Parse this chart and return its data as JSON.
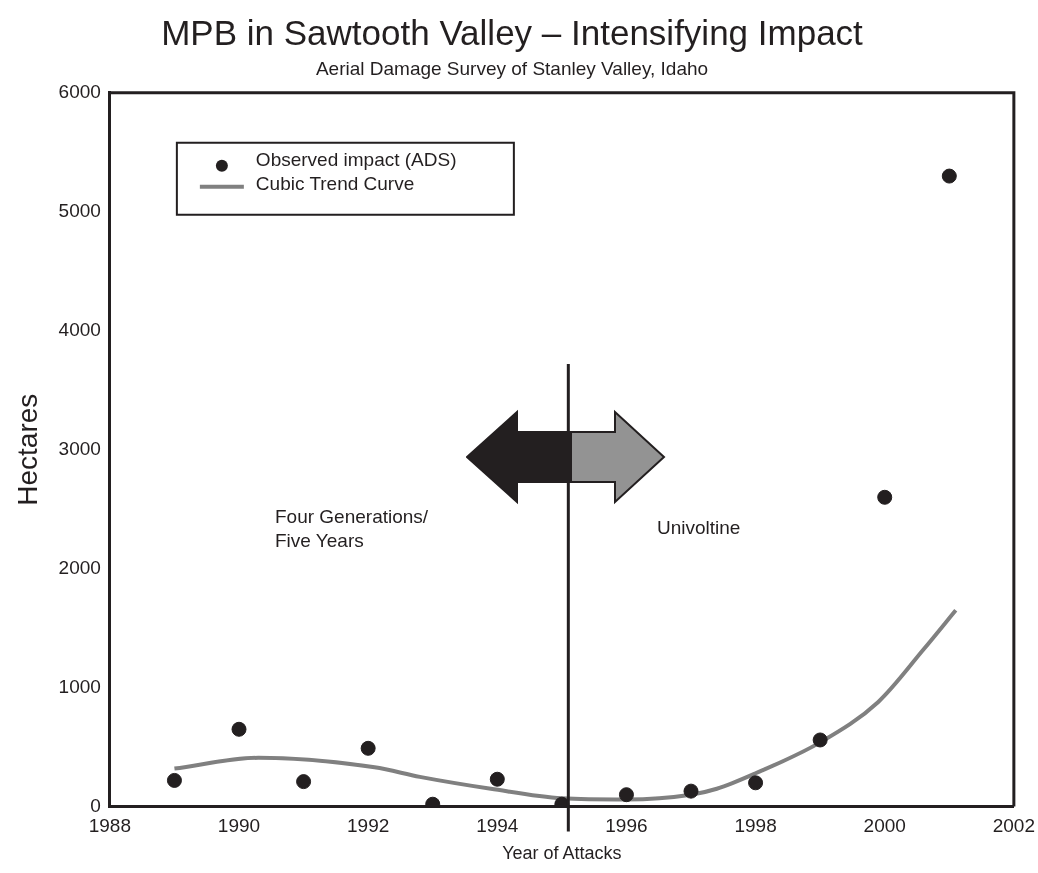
{
  "chart_data": {
    "type": "scatter",
    "title": "MPB in Sawtooth Valley – Intensifying Impact",
    "subtitle": "Aerial Damage Survey of Stanley Valley, Idaho",
    "xlabel": "Year of Attacks",
    "ylabel": "Hectares",
    "series": [
      {
        "name": "Observed impact (ADS)",
        "marker": "circle",
        "color": "#231f20",
        "x": [
          1989,
          1990,
          1991,
          1992,
          1993,
          1994,
          1995,
          1996,
          1997,
          1998,
          1999,
          2000,
          2001
        ],
        "values": [
          220,
          650,
          210,
          490,
          20,
          230,
          20,
          100,
          130,
          200,
          560,
          2600,
          5300
        ]
      },
      {
        "name": "Cubic Trend Curve",
        "type": "line",
        "marker": "none",
        "color": "#808080",
        "x": [
          1989,
          1990.3,
          1992.1,
          1992.8,
          1993.9,
          1995,
          1996,
          1997,
          1997.4,
          1998,
          1999,
          1999.9,
          2000.6,
          2001.1
        ],
        "values": [
          320,
          410,
          330,
          250,
          150,
          70,
          60,
          100,
          150,
          280,
          540,
          880,
          1320,
          1650
        ]
      }
    ],
    "xlim": [
      1988,
      2002
    ],
    "xticks": [
      1988,
      1990,
      1992,
      1994,
      1996,
      1998,
      2000,
      2002
    ],
    "ylim": [
      0,
      6000
    ],
    "yticks": [
      0,
      1000,
      2000,
      3000,
      4000,
      5000,
      6000
    ],
    "grid": false,
    "legend": "top left",
    "ref_lines": [
      {
        "axis": "x",
        "value": 1995.1,
        "color": "#231f20"
      }
    ],
    "annotations": [
      "Four Generations/\nFive Years",
      "Univoltine"
    ]
  }
}
